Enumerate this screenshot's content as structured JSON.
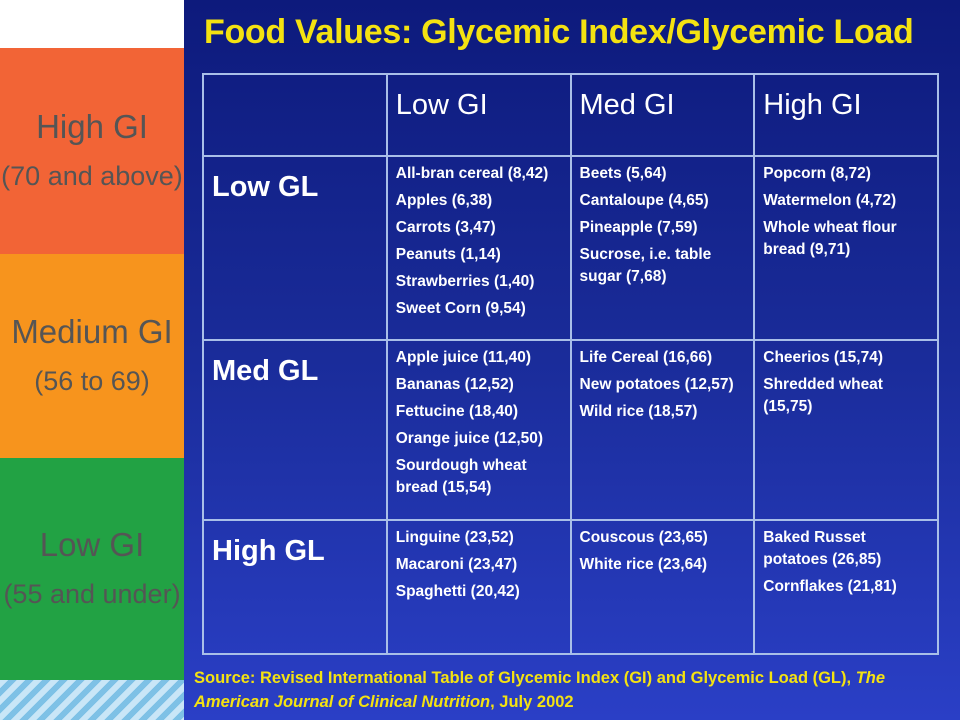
{
  "title": "Food Values: Glycemic Index/Glycemic Load",
  "legend": {
    "high": {
      "name": "High GI",
      "range": "(70 and above)"
    },
    "medium": {
      "name": "Medium GI",
      "range": "(56 to 69)"
    },
    "low": {
      "name": "Low GI",
      "range": "(55 and under)"
    }
  },
  "table": {
    "columns": [
      "",
      "Low GI",
      "Med GI",
      "High GI"
    ],
    "rows": [
      {
        "label": "Low GL",
        "cells": [
          [
            "All-bran cereal (8,42)",
            "Apples (6,38)",
            "Carrots (3,47)",
            "Peanuts (1,14)",
            "Strawberries (1,40)",
            "Sweet Corn (9,54)"
          ],
          [
            "Beets (5,64)",
            "Cantaloupe (4,65)",
            "Pineapple (7,59)",
            "Sucrose, i.e. table sugar (7,68)"
          ],
          [
            "Popcorn (8,72)",
            "Watermelon (4,72)",
            "Whole wheat flour bread (9,71)"
          ]
        ]
      },
      {
        "label": "Med GL",
        "cells": [
          [
            "Apple juice (11,40)",
            "Bananas (12,52)",
            "Fettucine (18,40)",
            "Orange juice (12,50)",
            "Sourdough wheat bread (15,54)"
          ],
          [
            "Life Cereal (16,66)",
            "New potatoes (12,57)",
            "Wild rice (18,57)"
          ],
          [
            "Cheerios (15,74)",
            "Shredded wheat (15,75)"
          ]
        ]
      },
      {
        "label": "High GL",
        "cells": [
          [
            "Linguine (23,52)",
            "Macaroni (23,47)",
            "Spaghetti (20,42)"
          ],
          [
            "Couscous (23,65)",
            "White rice (23,64)"
          ],
          [
            "Baked Russet potatoes (26,85)",
            "Cornflakes (21,81)"
          ]
        ]
      }
    ]
  },
  "source": {
    "prefix": "Source:  Revised International Table of Glycemic Index (GI) and Glycemic Load (GL), ",
    "journal": "The American Journal of Clinical Nutrition",
    "suffix": ", July 2002"
  },
  "colors": {
    "title": "#f4e211",
    "high_gi": "#f26436",
    "medium_gi": "#f7941d",
    "low_gi": "#22a244",
    "slide_bg": "#1a2c9a",
    "grid": "#a9bfe8"
  }
}
